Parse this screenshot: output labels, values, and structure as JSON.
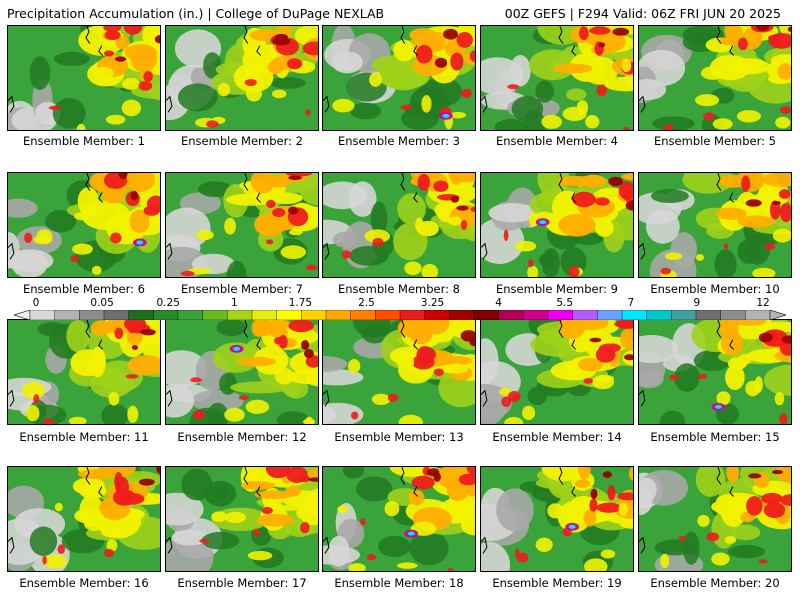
{
  "header": {
    "title": "Precipitation Accumulation (in.) | College of DuPage NEXLAB",
    "run_info": "00Z GEFS | F294 Valid: 06Z FRI JUN 20 2025"
  },
  "members": [
    "Ensemble Member: 1",
    "Ensemble Member: 2",
    "Ensemble Member: 3",
    "Ensemble Member: 4",
    "Ensemble Member: 5",
    "Ensemble Member: 6",
    "Ensemble Member: 7",
    "Ensemble Member: 8",
    "Ensemble Member: 9",
    "Ensemble Member: 10",
    "Ensemble Member: 11",
    "Ensemble Member: 12",
    "Ensemble Member: 13",
    "Ensemble Member: 14",
    "Ensemble Member: 15",
    "Ensemble Member: 16",
    "Ensemble Member: 17",
    "Ensemble Member: 18",
    "Ensemble Member: 19",
    "Ensemble Member: 20"
  ],
  "colorbar": {
    "labels": [
      "0",
      "0.05",
      "0.25",
      "1",
      "1.75",
      "2.5",
      "3.25",
      "4",
      "5.5",
      "7",
      "9",
      "12"
    ],
    "colors": [
      "#d8d8d8",
      "#b4b4b4",
      "#8c8c8c",
      "#6e6e6e",
      "#1e6e1e",
      "#2a8a2a",
      "#3aa33a",
      "#66bb22",
      "#a8d418",
      "#e6ee10",
      "#ffff00",
      "#ffd400",
      "#ffaa00",
      "#ff7f00",
      "#ff4d00",
      "#ee1c1c",
      "#cc0000",
      "#a00000",
      "#800000",
      "#b0005a",
      "#d0008c",
      "#ee00ee",
      "#b45cff",
      "#6ea0ff",
      "#00e8ff",
      "#00c8c8",
      "#40a0a0",
      "#6e6e6e",
      "#8c8c8c",
      "#b4b4b4"
    ]
  },
  "field_colors": {
    "gray_light": "#d6d6d6",
    "gray": "#a9a9a9",
    "green_dark": "#227a22",
    "green": "#3aa33a",
    "yellow_green": "#9fd21b",
    "yellow": "#f2f200",
    "orange": "#ffae00",
    "red": "#ee1c1c",
    "dark_red": "#9c0000",
    "magenta": "#d000a0",
    "purple": "#a050ff",
    "cyan": "#00e8ff"
  }
}
